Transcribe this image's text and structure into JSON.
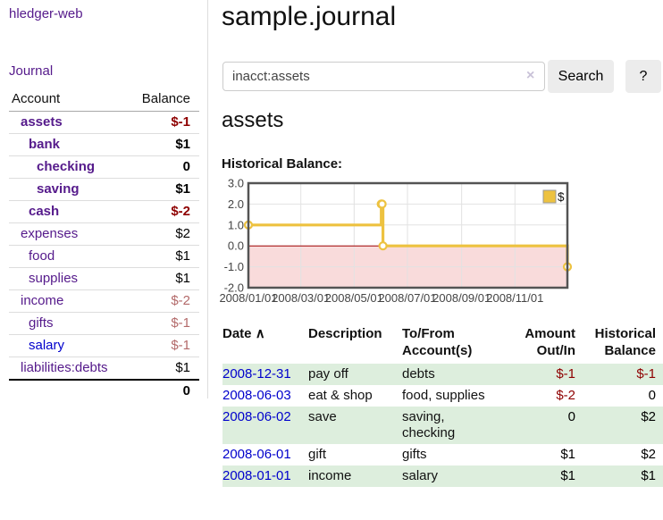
{
  "sidebar": {
    "brand": "hledger-web",
    "nav": {
      "journal_label": "Journal"
    },
    "accounts_table": {
      "headers": {
        "account": "Account",
        "balance": "Balance"
      },
      "rows": [
        {
          "name": "assets",
          "depth": 1,
          "bold": true,
          "balance": "$-1"
        },
        {
          "name": "bank",
          "depth": 2,
          "bold": true,
          "balance": "$1"
        },
        {
          "name": "checking",
          "depth": 3,
          "bold": true,
          "balance": "0"
        },
        {
          "name": "saving",
          "depth": 3,
          "bold": true,
          "balance": "$1"
        },
        {
          "name": "cash",
          "depth": 2,
          "bold": true,
          "balance": "$-2"
        },
        {
          "name": "expenses",
          "depth": 1,
          "bold": false,
          "balance": "$2"
        },
        {
          "name": "food",
          "depth": 2,
          "bold": false,
          "balance": "$1"
        },
        {
          "name": "supplies",
          "depth": 2,
          "bold": false,
          "balance": "$1"
        },
        {
          "name": "income",
          "depth": 1,
          "bold": false,
          "balance": "$-2"
        },
        {
          "name": "gifts",
          "depth": 2,
          "bold": false,
          "balance": "$-1"
        },
        {
          "name": "salary",
          "depth": 2,
          "bold": false,
          "balance": "$-1",
          "blue": true
        },
        {
          "name": "liabilities:debts",
          "depth": 1,
          "bold": false,
          "balance": "$1"
        }
      ],
      "total": "0"
    }
  },
  "header": {
    "title": "sample.journal"
  },
  "search": {
    "query": "inacct:assets",
    "clear_icon": "×",
    "search_button_label": "Search",
    "help_button_label": "?"
  },
  "account_view": {
    "heading": "assets",
    "chart_label": "Historical Balance:"
  },
  "chart_data": {
    "type": "line",
    "steps": true,
    "title": "Historical Balance",
    "series": [
      {
        "name": "$",
        "color": "#edc240",
        "points": [
          [
            "2008-01-01",
            1
          ],
          [
            "2008-06-01",
            2
          ],
          [
            "2008-06-02",
            2
          ],
          [
            "2008-06-03",
            0
          ],
          [
            "2008-12-31",
            -1
          ]
        ]
      }
    ],
    "x_range": [
      "2008-01-01",
      "2008-12-31"
    ],
    "x_tick_dates": [
      "2008-01-01",
      "2008-03-01",
      "2008-05-01",
      "2008-07-01",
      "2008-09-01",
      "2008-11-01"
    ],
    "x_tick_labels": [
      "2008/01/01",
      "2008/03/01",
      "2008/05/01",
      "2008/07/01",
      "2008/09/01",
      "2008/11/01"
    ],
    "y_ticks": [
      3.0,
      2.0,
      1.0,
      0.0,
      -1.0,
      -2.0
    ],
    "ylim": [
      -2,
      3
    ],
    "grid": true,
    "negative_region": true,
    "legend": {
      "label": "$",
      "position": "top-right"
    }
  },
  "register_table": {
    "headers": {
      "date": "Date",
      "sort_icon": "∧",
      "description": "Description",
      "accounts": "To/From\nAccount(s)",
      "amount": "Amount\nOut/In",
      "balance": "Historical\nBalance"
    },
    "rows": [
      {
        "date": "2008-12-31",
        "description": "pay off",
        "accounts": "debts",
        "amount": "$-1",
        "balance": "$-1"
      },
      {
        "date": "2008-06-03",
        "description": "eat & shop",
        "accounts": "food, supplies",
        "amount": "$-2",
        "balance": "0"
      },
      {
        "date": "2008-06-02",
        "description": "save",
        "accounts": "saving,\nchecking",
        "amount": "0",
        "balance": "$2"
      },
      {
        "date": "2008-06-01",
        "description": "gift",
        "accounts": "gifts",
        "amount": "$1",
        "balance": "$2"
      },
      {
        "date": "2008-01-01",
        "description": "income",
        "accounts": "salary",
        "amount": "$1",
        "balance": "$1"
      }
    ]
  },
  "colors": {
    "link_purple": "#551a8b",
    "link_blue": "#0000cc",
    "negative_strong": "#8e0000",
    "negative_muted": "#b36a6a",
    "row_stripe_green": "#ddeedd",
    "series_gold": "#edc240",
    "negative_region_pink": "#f9dbdb",
    "zero_line_red": "#a40000",
    "chart_border": "#545454",
    "grid_line": "#e2e2e2",
    "axis_label": "#444444"
  }
}
